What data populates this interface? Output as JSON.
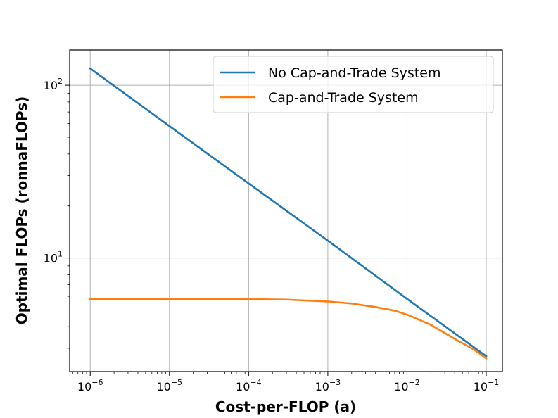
{
  "chart_data": {
    "type": "line",
    "title": "",
    "xlabel": "Cost-per-FLOP (a)",
    "ylabel": "Optimal FLOPs (ronnaFLOPs)",
    "xscale": "log",
    "yscale": "log",
    "xlim": [
      5.5e-07,
      0.16
    ],
    "ylim": [
      2.2,
      160
    ],
    "grid": true,
    "legend_position": "top-right",
    "xticks": [
      {
        "base": "10",
        "exp": "−6",
        "value": 1e-06
      },
      {
        "base": "10",
        "exp": "−5",
        "value": 1e-05
      },
      {
        "base": "10",
        "exp": "−4",
        "value": 0.0001
      },
      {
        "base": "10",
        "exp": "−3",
        "value": 0.001
      },
      {
        "base": "10",
        "exp": "−2",
        "value": 0.01
      },
      {
        "base": "10",
        "exp": "−1",
        "value": 0.1
      }
    ],
    "yticks": [
      {
        "base": "10",
        "exp": "1",
        "value": 10
      },
      {
        "base": "10",
        "exp": "2",
        "value": 100
      }
    ],
    "series": [
      {
        "name": "No Cap-and-Trade System",
        "color": "#1f77b4",
        "x": [
          1e-06,
          1e-05,
          0.0001,
          0.001,
          0.01,
          0.1
        ],
        "y": [
          125,
          58,
          27,
          12.6,
          5.8,
          2.7
        ]
      },
      {
        "name": "Cap-and-Trade System",
        "color": "#ff7f0e",
        "x": [
          1e-06,
          1e-05,
          0.0001,
          0.0003,
          0.001,
          0.002,
          0.004,
          0.007,
          0.01,
          0.02,
          0.04,
          0.07,
          0.1
        ],
        "y": [
          5.8,
          5.8,
          5.78,
          5.74,
          5.6,
          5.45,
          5.2,
          4.95,
          4.7,
          4.1,
          3.4,
          2.95,
          2.62
        ]
      }
    ]
  }
}
